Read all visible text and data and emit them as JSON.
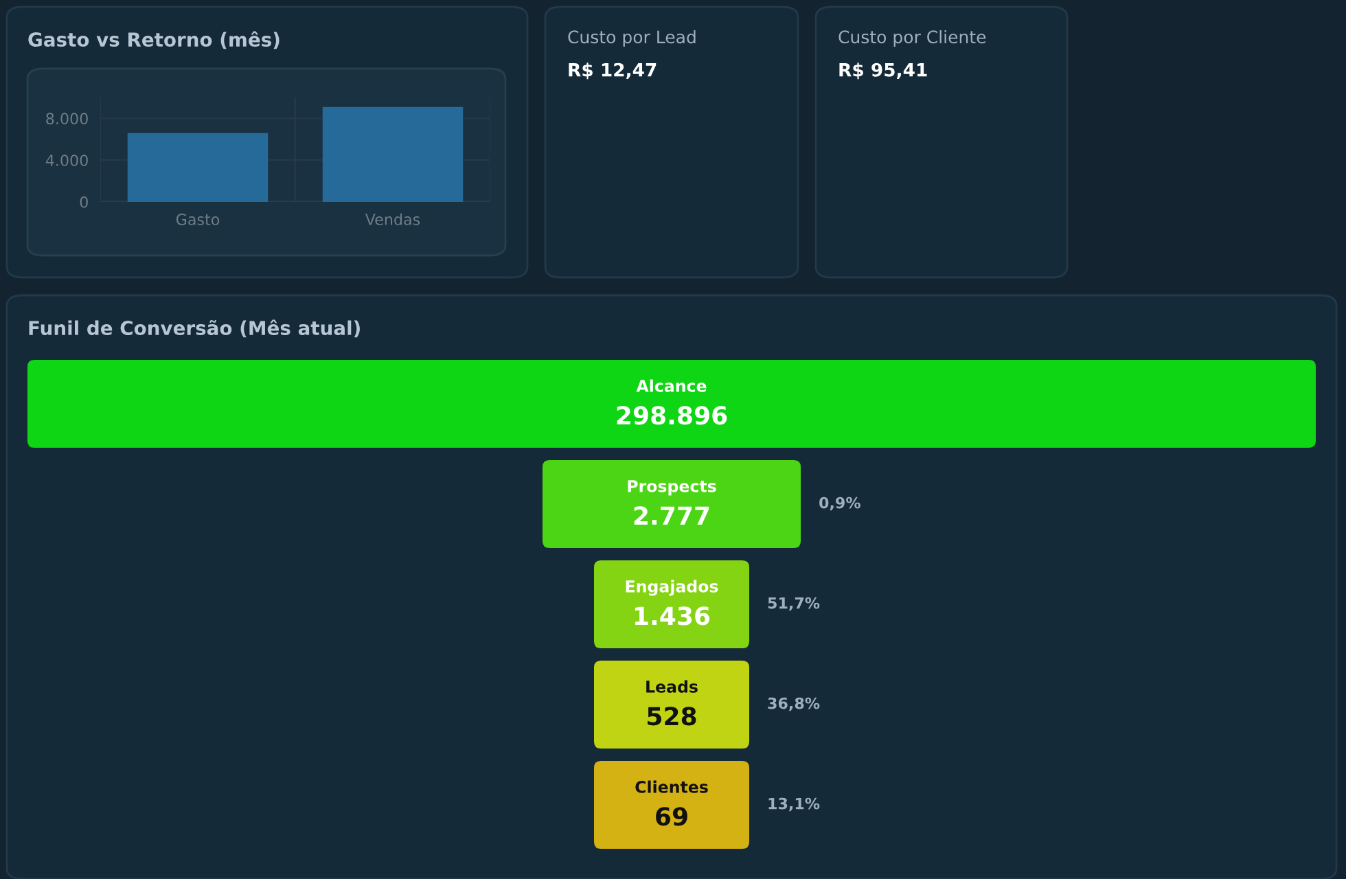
{
  "chart_data": [
    {
      "type": "bar",
      "title": "Gasto vs Retorno (mês)",
      "categories": [
        "Gasto",
        "Vendas"
      ],
      "values": [
        6600,
        9100
      ],
      "color": "#256a99",
      "ylim": [
        0,
        10000
      ],
      "yticks": [
        {
          "value": 0,
          "label": "0"
        },
        {
          "value": 4000,
          "label": "4.000"
        },
        {
          "value": 8000,
          "label": "8.000"
        }
      ],
      "grid": true
    },
    {
      "type": "other",
      "title": "Custo por Lead",
      "annotations": [
        "R$ 12,47"
      ]
    },
    {
      "type": "other",
      "title": "Custo por Cliente",
      "annotations": [
        "R$ 95,41"
      ]
    },
    {
      "type": "other",
      "title": "Funil de Conversão (Mês atual)",
      "categories": [
        "Alcance",
        "Prospects",
        "Engajados",
        "Leads",
        "Clientes"
      ],
      "values": [
        298896,
        2777,
        1436,
        528,
        69
      ],
      "value_labels": [
        "298.896",
        "2.777",
        "1.436",
        "528",
        "69"
      ],
      "colors": [
        "#0fd614",
        "#4bd514",
        "#84d413",
        "#c0d414",
        "#d4b214"
      ],
      "annotations": [
        "0,9%",
        "51,7%",
        "36,8%",
        "13,1%"
      ]
    }
  ]
}
